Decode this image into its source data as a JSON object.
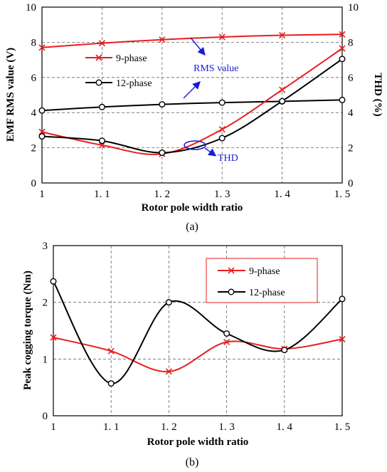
{
  "chart_data": [
    {
      "type": "line",
      "caption": "(a)",
      "xlabel": "Rotor pole width ratio",
      "ylabel": "EMF RMS value (V)",
      "y2label": "THD (%)",
      "x": [
        1,
        1.1,
        1.2,
        1.3,
        1.4,
        1.5
      ],
      "xticklabels": [
        "1",
        "1. 1",
        "1. 2",
        "1. 3",
        "1. 4",
        "1. 5"
      ],
      "xlim": [
        1,
        1.5
      ],
      "ylim": [
        0,
        10
      ],
      "y2lim": [
        0,
        10
      ],
      "yticks": [
        "0",
        "2",
        "4",
        "6",
        "8",
        "10"
      ],
      "y2ticks": [
        "0",
        "2",
        "4",
        "6",
        "8",
        "10"
      ],
      "grid": true,
      "legend_position": "upper-left",
      "series": [
        {
          "name": "9-phase",
          "metric": "RMS value",
          "axis": "left",
          "color": "#e81e1e",
          "marker": "x",
          "values": [
            7.7,
            7.95,
            8.15,
            8.3,
            8.4,
            8.45
          ]
        },
        {
          "name": "12-phase",
          "metric": "RMS value",
          "axis": "left",
          "color": "#000000",
          "marker": "o",
          "values": [
            4.12,
            4.32,
            4.47,
            4.57,
            4.64,
            4.72
          ]
        },
        {
          "name": "9-phase",
          "metric": "THD",
          "axis": "right",
          "color": "#e81e1e",
          "marker": "x",
          "values": [
            2.9,
            2.15,
            1.65,
            3.05,
            5.3,
            7.65
          ]
        },
        {
          "name": "12-phase",
          "metric": "THD",
          "axis": "right",
          "color": "#000000",
          "marker": "o",
          "values": [
            2.65,
            2.4,
            1.72,
            2.55,
            4.65,
            7.05
          ]
        }
      ],
      "annotations": {
        "rms": "RMS value",
        "thd": "THD"
      }
    },
    {
      "type": "line",
      "caption": "(b)",
      "xlabel": "Rotor pole width ratio",
      "ylabel": "Peak cogging torque (Nm)",
      "x": [
        1,
        1.1,
        1.2,
        1.3,
        1.4,
        1.5
      ],
      "xticklabels": [
        "1",
        "1. 1",
        "1. 2",
        "1. 3",
        "1. 4",
        "1. 5"
      ],
      "xlim": [
        1,
        1.5
      ],
      "ylim": [
        0,
        3
      ],
      "yticks": [
        "0",
        "1",
        "2",
        "3"
      ],
      "grid": true,
      "legend_position": "top-right",
      "series": [
        {
          "name": "9-phase",
          "color": "#e81e1e",
          "marker": "x",
          "values": [
            1.38,
            1.14,
            0.78,
            1.3,
            1.18,
            1.35
          ]
        },
        {
          "name": "12-phase",
          "color": "#000000",
          "marker": "o",
          "values": [
            2.37,
            0.57,
            2.0,
            1.45,
            1.16,
            2.06
          ]
        }
      ]
    }
  ]
}
